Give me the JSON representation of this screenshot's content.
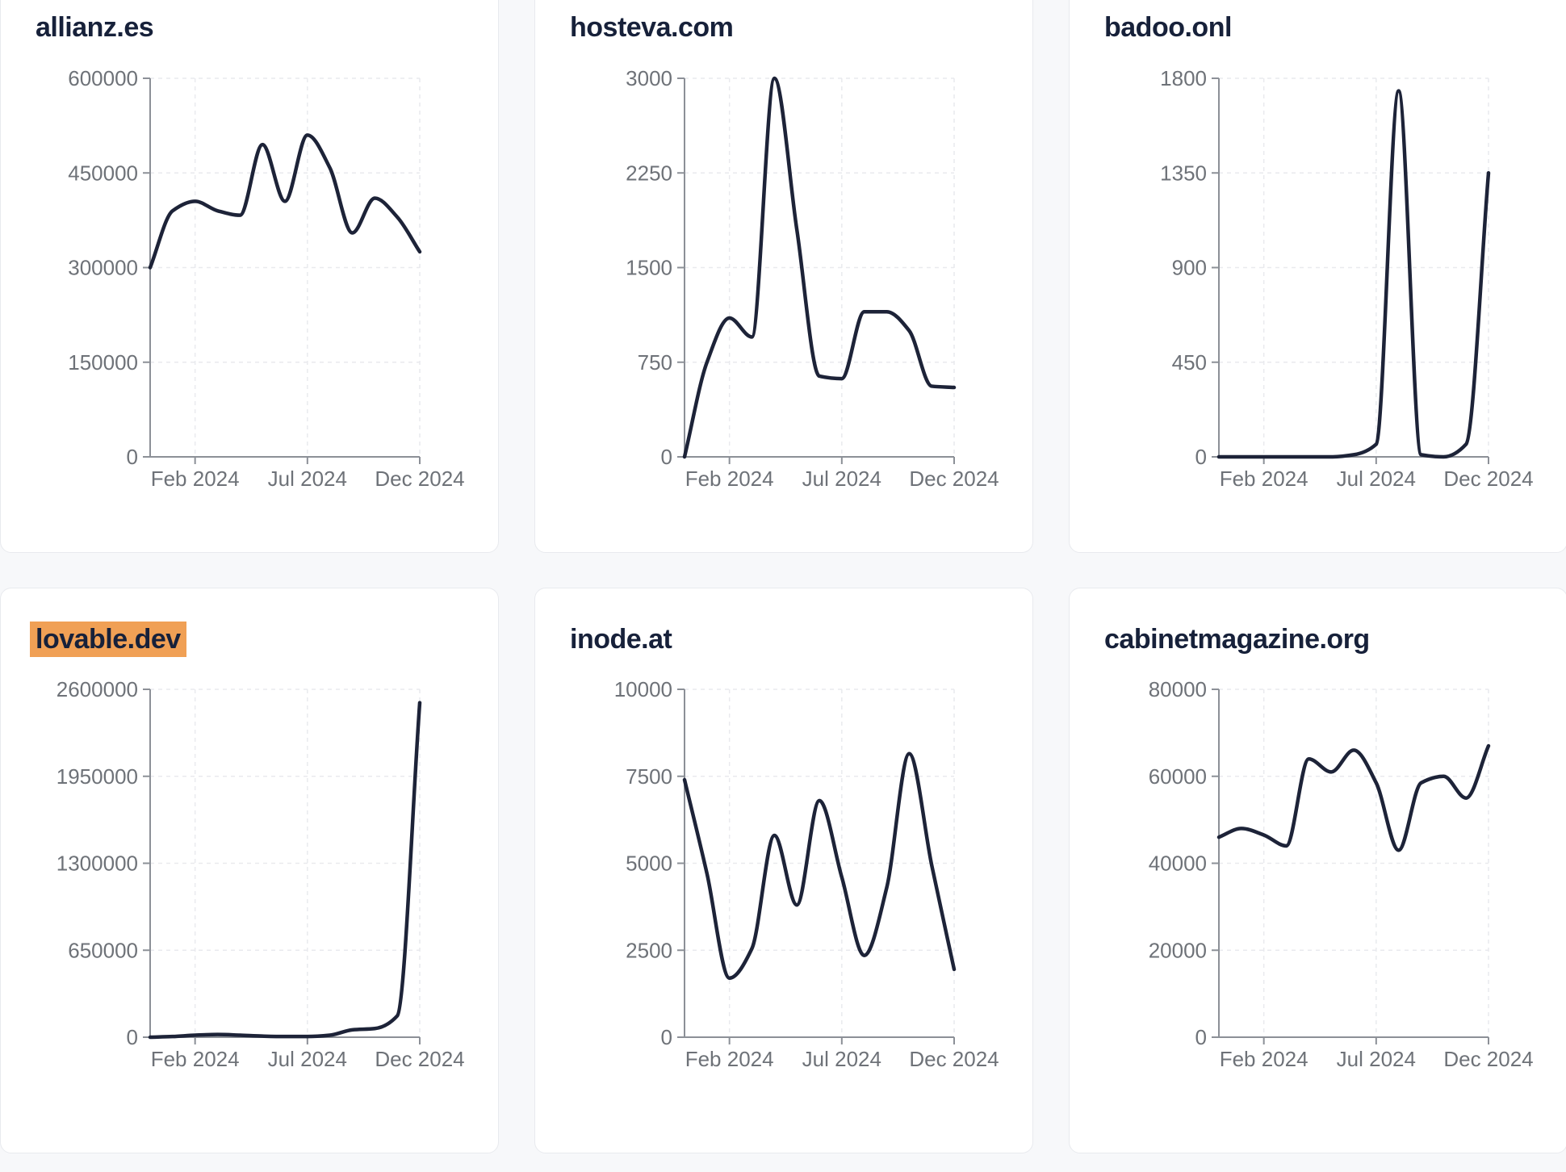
{
  "page": {
    "background": "#f7f8fa"
  },
  "colors": {
    "line": "#1d2338",
    "title": "#17213a",
    "axis": "#8c9097",
    "tick_label": "#6e7278",
    "gridline": "#e9eaee",
    "card_bg": "#ffffff",
    "card_border": "#e8eaee",
    "highlight": "#f0a055",
    "page_bg": "#f7f8fa"
  },
  "chart_data": [
    {
      "type": "line",
      "title": "allianz.es",
      "highlighted": false,
      "x": [
        "Dec 2023",
        "Jan 2024",
        "Feb 2024",
        "Mar 2024",
        "Apr 2024",
        "May 2024",
        "Jun 2024",
        "Jul 2024",
        "Aug 2024",
        "Sep 2024",
        "Oct 2024",
        "Nov 2024",
        "Dec 2024"
      ],
      "values": [
        300000,
        390000,
        405000,
        390000,
        383000,
        495000,
        405000,
        510000,
        458000,
        355000,
        410000,
        380000,
        325000
      ],
      "ylim": [
        0,
        600000
      ],
      "y_ticks": [
        0,
        150000,
        300000,
        450000,
        600000
      ],
      "x_tick_labels": [
        "Feb 2024",
        "Jul 2024",
        "Dec 2024"
      ],
      "x_tick_indices": [
        2,
        7,
        12
      ],
      "grid": true,
      "legend": "none"
    },
    {
      "type": "line",
      "title": "hosteva.com",
      "highlighted": false,
      "x": [
        "Dec 2023",
        "Jan 2024",
        "Feb 2024",
        "Mar 2024",
        "Apr 2024",
        "May 2024",
        "Jun 2024",
        "Jul 2024",
        "Aug 2024",
        "Sep 2024",
        "Oct 2024",
        "Nov 2024",
        "Dec 2024"
      ],
      "values": [
        0,
        750,
        1100,
        950,
        3000,
        1800,
        640,
        620,
        1150,
        1150,
        1000,
        560,
        550
      ],
      "ylim": [
        0,
        3000
      ],
      "y_ticks": [
        0,
        750,
        1500,
        2250,
        3000
      ],
      "x_tick_labels": [
        "Feb 2024",
        "Jul 2024",
        "Dec 2024"
      ],
      "x_tick_indices": [
        2,
        7,
        12
      ],
      "grid": true,
      "legend": "none"
    },
    {
      "type": "line",
      "title": "badoo.onl",
      "highlighted": false,
      "x": [
        "Dec 2023",
        "Jan 2024",
        "Feb 2024",
        "Mar 2024",
        "Apr 2024",
        "May 2024",
        "Jun 2024",
        "Jul 2024",
        "Aug 2024",
        "Sep 2024",
        "Oct 2024",
        "Nov 2024",
        "Dec 2024"
      ],
      "values": [
        0,
        0,
        0,
        0,
        0,
        0,
        10,
        60,
        1740,
        10,
        0,
        60,
        1350
      ],
      "ylim": [
        0,
        1800
      ],
      "y_ticks": [
        0,
        450,
        900,
        1350,
        1800
      ],
      "x_tick_labels": [
        "Feb 2024",
        "Jul 2024",
        "Dec 2024"
      ],
      "x_tick_indices": [
        2,
        7,
        12
      ],
      "grid": true,
      "legend": "none"
    },
    {
      "type": "line",
      "title": "lovable.dev",
      "highlighted": true,
      "x": [
        "Dec 2023",
        "Jan 2024",
        "Feb 2024",
        "Mar 2024",
        "Apr 2024",
        "May 2024",
        "Jun 2024",
        "Jul 2024",
        "Aug 2024",
        "Sep 2024",
        "Oct 2024",
        "Nov 2024",
        "Dec 2024"
      ],
      "values": [
        0,
        5000,
        15000,
        20000,
        15000,
        8000,
        5000,
        5000,
        15000,
        55000,
        65000,
        160000,
        2500000
      ],
      "ylim": [
        0,
        2600000
      ],
      "y_ticks": [
        0,
        650000,
        1300000,
        1950000,
        2600000
      ],
      "x_tick_labels": [
        "Feb 2024",
        "Jul 2024",
        "Dec 2024"
      ],
      "x_tick_indices": [
        2,
        7,
        12
      ],
      "grid": true,
      "legend": "none"
    },
    {
      "type": "line",
      "title": "inode.at",
      "highlighted": false,
      "x": [
        "Dec 2023",
        "Jan 2024",
        "Feb 2024",
        "Mar 2024",
        "Apr 2024",
        "May 2024",
        "Jun 2024",
        "Jul 2024",
        "Aug 2024",
        "Sep 2024",
        "Oct 2024",
        "Nov 2024",
        "Dec 2024"
      ],
      "values": [
        7400,
        4700,
        1700,
        2550,
        5800,
        3800,
        6800,
        4600,
        2350,
        4300,
        8150,
        4950,
        1950
      ],
      "ylim": [
        0,
        10000
      ],
      "y_ticks": [
        0,
        2500,
        5000,
        7500,
        10000
      ],
      "x_tick_labels": [
        "Feb 2024",
        "Jul 2024",
        "Dec 2024"
      ],
      "x_tick_indices": [
        2,
        7,
        12
      ],
      "grid": true,
      "legend": "none"
    },
    {
      "type": "line",
      "title": "cabinetmagazine.org",
      "highlighted": false,
      "x": [
        "Dec 2023",
        "Jan 2024",
        "Feb 2024",
        "Mar 2024",
        "Apr 2024",
        "May 2024",
        "Jun 2024",
        "Jul 2024",
        "Aug 2024",
        "Sep 2024",
        "Oct 2024",
        "Nov 2024",
        "Dec 2024"
      ],
      "values": [
        46000,
        48000,
        46500,
        44000,
        64000,
        61000,
        66000,
        58500,
        43000,
        58500,
        60000,
        55000,
        67000
      ],
      "ylim": [
        0,
        80000
      ],
      "y_ticks": [
        0,
        20000,
        40000,
        60000,
        80000
      ],
      "x_tick_labels": [
        "Feb 2024",
        "Jul 2024",
        "Dec 2024"
      ],
      "x_tick_indices": [
        2,
        7,
        12
      ],
      "grid": true,
      "legend": "none"
    }
  ]
}
